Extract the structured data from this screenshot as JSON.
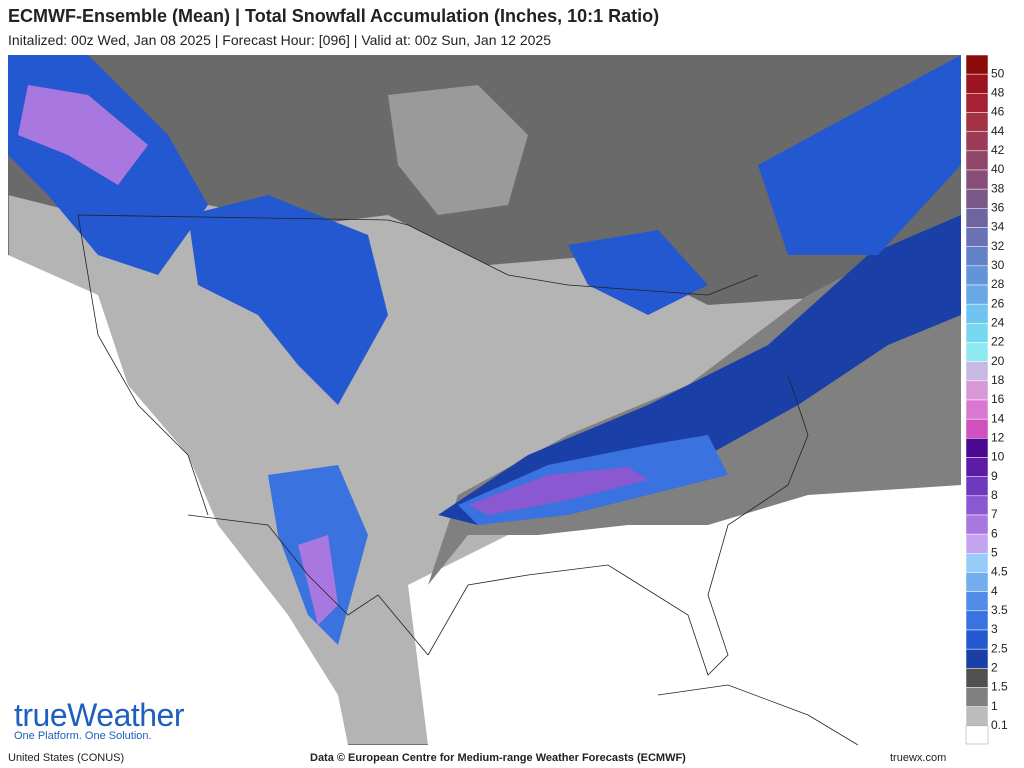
{
  "header": {
    "title": "ECMWF-Ensemble (Mean) | Total Snowfall Accumulation (Inches, 10:1 Ratio)",
    "subtitle": "Initalized: 00z Wed, Jan 08 2025 | Forecast Hour: [096] | Valid at: 00z Sun, Jan 12 2025"
  },
  "logo": {
    "brand": "trueWeather",
    "tagline": "One Platform. One Solution."
  },
  "legend": {
    "base_color": "#ffffff",
    "entries": [
      {
        "label": "50",
        "color": "#8b0a0a"
      },
      {
        "label": "48",
        "color": "#9c1420"
      },
      {
        "label": "46",
        "color": "#a42232"
      },
      {
        "label": "44",
        "color": "#a43244"
      },
      {
        "label": "42",
        "color": "#9a3c58"
      },
      {
        "label": "40",
        "color": "#904668"
      },
      {
        "label": "38",
        "color": "#884e78"
      },
      {
        "label": "36",
        "color": "#7a5888"
      },
      {
        "label": "34",
        "color": "#6e64a0"
      },
      {
        "label": "32",
        "color": "#6872b4"
      },
      {
        "label": "30",
        "color": "#6282c8"
      },
      {
        "label": "28",
        "color": "#6494d8"
      },
      {
        "label": "26",
        "color": "#68a8e4"
      },
      {
        "label": "24",
        "color": "#70c4f0"
      },
      {
        "label": "22",
        "color": "#78d8f0"
      },
      {
        "label": "20",
        "color": "#90e8f0"
      },
      {
        "label": "18",
        "color": "#c8b8e4"
      },
      {
        "label": "16",
        "color": "#d898d8"
      },
      {
        "label": "14",
        "color": "#d878d0"
      },
      {
        "label": "12",
        "color": "#d050c0"
      },
      {
        "label": "10",
        "color": "#4c0890"
      },
      {
        "label": "9",
        "color": "#5c1ca4"
      },
      {
        "label": "8",
        "color": "#7038bc"
      },
      {
        "label": "7",
        "color": "#8a58d0"
      },
      {
        "label": "6",
        "color": "#a878e0"
      },
      {
        "label": "5",
        "color": "#c4a4f0"
      },
      {
        "label": "4.5",
        "color": "#98ccf8"
      },
      {
        "label": "4",
        "color": "#74acf0"
      },
      {
        "label": "3.5",
        "color": "#508ce8"
      },
      {
        "label": "3",
        "color": "#3a72e0"
      },
      {
        "label": "2.5",
        "color": "#2458d0"
      },
      {
        "label": "2",
        "color": "#1a40a8"
      },
      {
        "label": "1.5",
        "color": "#505050"
      },
      {
        "label": "1",
        "color": "#808080"
      },
      {
        "label": "0.1",
        "color": "#bcbcbc"
      }
    ]
  },
  "footer": {
    "left": "United States (CONUS)",
    "center": "Data © European Centre for Medium-range Weather Forecasts (ECMWF)",
    "right": "truewx.com"
  }
}
